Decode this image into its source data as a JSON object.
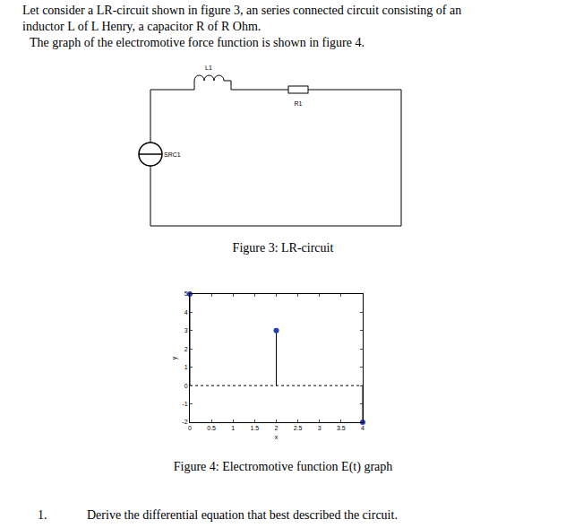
{
  "text": {
    "intro": [
      "Let consider a LR-circuit shown in figure 3, an series connected circuit consisting of an",
      "inductor L of L Henry, a capacitor R of R Ohm.",
      "The graph of the electromotive force function is shown in figure 4."
    ],
    "figure3_caption": "Figure 3: LR-circuit",
    "figure4_caption": "Figure 4: Electromotive function E(t) graph",
    "question": {
      "number": "1.",
      "text": "Derive the differential equation that best described the circuit."
    }
  },
  "circuit": {
    "inductor": "L1",
    "resistor": "R1",
    "source": "SRC1"
  },
  "chart_data": {
    "type": "stem",
    "x": [
      0,
      2,
      4
    ],
    "values": [
      5,
      3,
      -2
    ],
    "color": "#1f3fbf",
    "baseline": 0,
    "x_label": "x",
    "y_label": "y",
    "xlim": [
      0,
      4
    ],
    "ylim": [
      -2,
      5
    ],
    "xticks": [
      0,
      0.5,
      1,
      1.5,
      2,
      2.5,
      3,
      3.5,
      4
    ],
    "yticks": [
      -2,
      -1,
      0,
      1,
      2,
      3,
      4,
      5
    ],
    "grid": false
  }
}
